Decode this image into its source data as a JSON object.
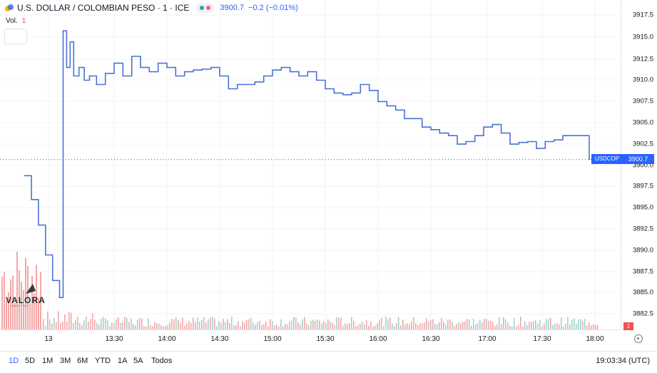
{
  "header": {
    "symbol_title": "U.S. DOLLAR / COLOMBIAN PESO · 1 · ICE",
    "price": "3900.7",
    "change": "−0.2 (−0.01%)"
  },
  "volume_legend": {
    "label": "Vol.",
    "value": "1"
  },
  "watermark": {
    "name": "VALORA",
    "tagline": "ANALITIK"
  },
  "price_axis": {
    "labels": [
      "3917.5",
      "3915.0",
      "3912.5",
      "3910.0",
      "3907.5",
      "3905.0",
      "3902.5",
      "3900.0",
      "3897.5",
      "3895.0",
      "3892.5",
      "3890.0",
      "3887.5",
      "3885.0",
      "3882.5"
    ],
    "symbol_tag": "USDCOP",
    "current_price_tag": "3900.7",
    "volume_tag": "1"
  },
  "time_axis": {
    "labels": [
      "13",
      "13:30",
      "14:00",
      "14:30",
      "15:00",
      "15:30",
      "16:00",
      "16:30",
      "17:00",
      "17:30",
      "18:00"
    ]
  },
  "bottom_bar": {
    "ranges": [
      "1D",
      "5D",
      "1M",
      "3M",
      "6M",
      "YTD",
      "1A",
      "5A",
      "Todos"
    ],
    "active_range": "1D",
    "clock": "19:03:34 (UTC)"
  },
  "colors": {
    "line": "#4a72d4",
    "accent": "#2962ff",
    "volume_down": "#f4a7a7",
    "volume_up": "#9fd3cf",
    "grid": "#f0f3fa"
  },
  "chart_data": {
    "type": "line",
    "title": "U.S. DOLLAR / COLOMBIAN PESO · 1 · ICE",
    "xlabel": "",
    "ylabel": "",
    "ylim": [
      3882.5,
      3918.5
    ],
    "x_ticks": [
      "13",
      "13:30",
      "14:00",
      "14:30",
      "15:00",
      "15:30",
      "16:00",
      "16:30",
      "17:00",
      "17:30",
      "18:00"
    ],
    "x": [
      "12:39",
      "12:43",
      "12:47",
      "12:51",
      "12:55",
      "12:59",
      "13:00",
      "13:01",
      "13:03",
      "13:05",
      "13:07",
      "13:10",
      "13:13",
      "13:16",
      "13:20",
      "13:25",
      "13:30",
      "13:35",
      "13:40",
      "13:45",
      "13:50",
      "13:55",
      "14:00",
      "14:05",
      "14:10",
      "14:15",
      "14:20",
      "14:25",
      "14:30",
      "14:35",
      "14:40",
      "14:45",
      "14:50",
      "14:55",
      "15:00",
      "15:05",
      "15:10",
      "15:15",
      "15:20",
      "15:25",
      "15:30",
      "15:35",
      "15:40",
      "15:45",
      "15:50",
      "15:55",
      "16:00",
      "16:05",
      "16:10",
      "16:15",
      "16:20",
      "16:25",
      "16:30",
      "16:35",
      "16:40",
      "16:45",
      "16:50",
      "16:55",
      "17:00",
      "17:05",
      "17:10",
      "17:15",
      "17:20",
      "17:25",
      "17:30",
      "17:35",
      "17:40",
      "17:45",
      "17:50",
      "17:55",
      "18:00"
    ],
    "y": [
      3898.8,
      3896.0,
      3893.0,
      3889.5,
      3886.5,
      3884.5,
      3884.5,
      3915.8,
      3911.5,
      3914.5,
      3910.5,
      3911.5,
      3910.0,
      3910.5,
      3909.5,
      3910.8,
      3912.0,
      3910.5,
      3912.8,
      3911.5,
      3911.0,
      3912.0,
      3911.5,
      3910.5,
      3911.0,
      3911.2,
      3911.3,
      3911.5,
      3910.5,
      3909.0,
      3909.5,
      3909.5,
      3909.8,
      3910.5,
      3911.2,
      3911.5,
      3911.0,
      3910.5,
      3911.0,
      3910.0,
      3909.0,
      3908.5,
      3908.3,
      3908.5,
      3909.5,
      3908.8,
      3907.5,
      3907.0,
      3906.5,
      3905.5,
      3905.5,
      3904.5,
      3904.2,
      3903.8,
      3903.5,
      3902.5,
      3902.8,
      3903.5,
      3904.5,
      3904.8,
      3903.8,
      3902.5,
      3902.7,
      3902.8,
      3902.0,
      3902.8,
      3903.0,
      3903.5,
      3903.5,
      3903.5,
      3900.7
    ],
    "last_price": 3900.7
  }
}
